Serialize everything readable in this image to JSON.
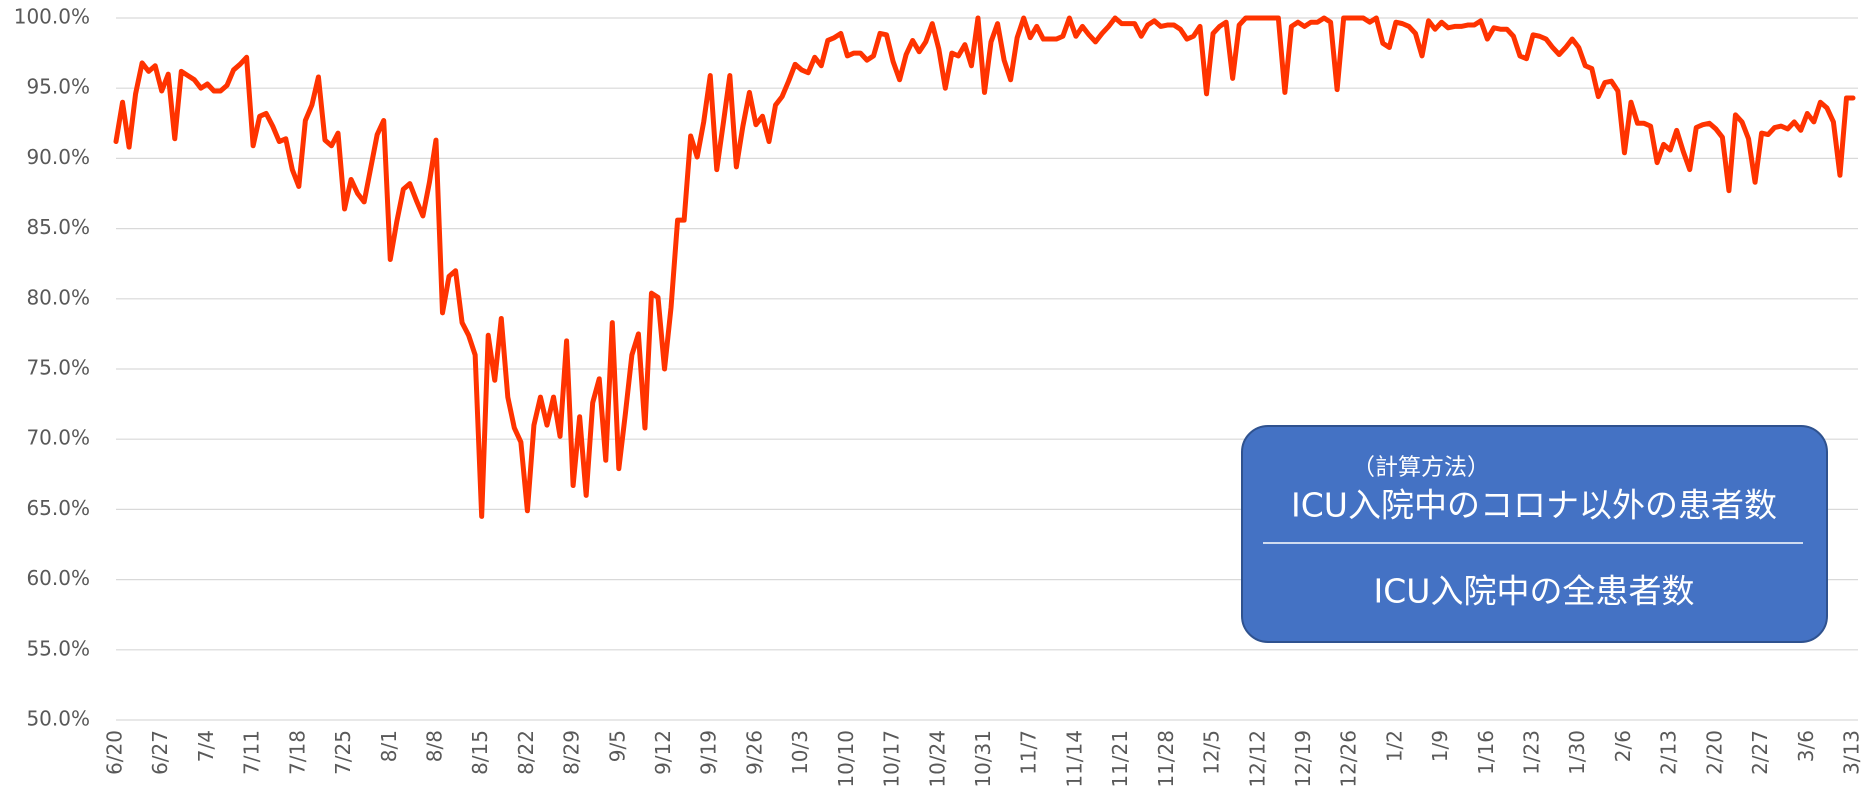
{
  "chart_data": {
    "type": "line",
    "categories": [
      "6/20",
      null,
      null,
      null,
      null,
      null,
      null,
      "6/27",
      null,
      null,
      null,
      null,
      null,
      null,
      "7/4",
      null,
      null,
      null,
      null,
      null,
      null,
      "7/11",
      null,
      null,
      null,
      null,
      null,
      null,
      "7/18",
      null,
      null,
      null,
      null,
      null,
      null,
      "7/25",
      null,
      null,
      null,
      null,
      null,
      null,
      "8/1",
      null,
      null,
      null,
      null,
      null,
      null,
      "8/8",
      null,
      null,
      null,
      null,
      null,
      null,
      "8/15",
      null,
      null,
      null,
      null,
      null,
      null,
      "8/22",
      null,
      null,
      null,
      null,
      null,
      null,
      "8/29",
      null,
      null,
      null,
      null,
      null,
      null,
      "9/5",
      null,
      null,
      null,
      null,
      null,
      null,
      "9/12",
      null,
      null,
      null,
      null,
      null,
      null,
      "9/19",
      null,
      null,
      null,
      null,
      null,
      null,
      "9/26",
      null,
      null,
      null,
      null,
      null,
      null,
      "10/3",
      null,
      null,
      null,
      null,
      null,
      null,
      "10/10",
      null,
      null,
      null,
      null,
      null,
      null,
      "10/17",
      null,
      null,
      null,
      null,
      null,
      null,
      "10/24",
      null,
      null,
      null,
      null,
      null,
      null,
      "10/31",
      null,
      null,
      null,
      null,
      null,
      null,
      "11/7",
      null,
      null,
      null,
      null,
      null,
      null,
      "11/14",
      null,
      null,
      null,
      null,
      null,
      null,
      "11/21",
      null,
      null,
      null,
      null,
      null,
      null,
      "11/28",
      null,
      null,
      null,
      null,
      null,
      null,
      "12/5",
      null,
      null,
      null,
      null,
      null,
      null,
      "12/12",
      null,
      null,
      null,
      null,
      null,
      null,
      "12/19",
      null,
      null,
      null,
      null,
      null,
      null,
      "12/26",
      null,
      null,
      null,
      null,
      null,
      null,
      "1/2",
      null,
      null,
      null,
      null,
      null,
      null,
      "1/9",
      null,
      null,
      null,
      null,
      null,
      null,
      "1/16",
      null,
      null,
      null,
      null,
      null,
      null,
      "1/23",
      null,
      null,
      null,
      null,
      null,
      null,
      "1/30",
      null,
      null,
      null,
      null,
      null,
      null,
      "2/6",
      null,
      null,
      null,
      null,
      null,
      null,
      "2/13",
      null,
      null,
      null,
      null,
      null,
      null,
      "2/20",
      null,
      null,
      null,
      null,
      null,
      null,
      "2/27",
      null,
      null,
      null,
      null,
      null,
      null,
      "3/6",
      null,
      null,
      null,
      null,
      null,
      null,
      "3/13"
    ],
    "series": [
      {
        "color": "#ff3300",
        "values": [
          91.2,
          94,
          90.8,
          94.6,
          96.8,
          96.2,
          96.6,
          94.8,
          96,
          91.4,
          96.2,
          95.9,
          95.6,
          95,
          95.3,
          94.8,
          94.8,
          95.2,
          96.3,
          96.7,
          97.2,
          90.9,
          93,
          93.2,
          92.3,
          91.2,
          91.4,
          89.2,
          88,
          92.7,
          93.8,
          95.8,
          91.3,
          90.9,
          91.8,
          86.4,
          88.5,
          87.5,
          86.9,
          89.3,
          91.7,
          92.7,
          82.8,
          85.5,
          87.8,
          88.2,
          87,
          85.9,
          88.3,
          91.3,
          79,
          81.6,
          82,
          78.3,
          77.4,
          76,
          64.5,
          77.4,
          74.2,
          78.6,
          73,
          70.8,
          69.8,
          64.9,
          71,
          73,
          71,
          73,
          70.2,
          77,
          66.7,
          71.6,
          66,
          72.6,
          74.3,
          68.5,
          78.3,
          67.9,
          71.8,
          76,
          77.5,
          70.8,
          80.4,
          80.1,
          75,
          79.4,
          85.6,
          85.6,
          91.6,
          90.1,
          92.6,
          95.9,
          89.2,
          92.5,
          95.9,
          89.4,
          92.3,
          94.7,
          92.4,
          93,
          91.2,
          93.8,
          94.4,
          95.5,
          96.7,
          96.3,
          96.1,
          97.2,
          96.6,
          98.4,
          98.6,
          98.9,
          97.3,
          97.5,
          97.5,
          97,
          97.3,
          98.9,
          98.8,
          96.9,
          95.6,
          97.4,
          98.4,
          97.6,
          98.3,
          99.6,
          97.8,
          95,
          97.5,
          97.3,
          98.1,
          96.6,
          100,
          94.7,
          98.3,
          99.6,
          97,
          95.6,
          98.6,
          100,
          98.6,
          99.4,
          98.5,
          98.5,
          98.5,
          98.7,
          100,
          98.7,
          99.4,
          98.8,
          98.3,
          98.9,
          99.4,
          100,
          99.6,
          99.6,
          99.6,
          98.7,
          99.5,
          99.8,
          99.4,
          99.5,
          99.5,
          99.2,
          98.5,
          98.7,
          99.4,
          94.6,
          98.9,
          99.4,
          99.7,
          95.7,
          99.5,
          100,
          100,
          100,
          100,
          100,
          100,
          94.7,
          99.4,
          99.7,
          99.4,
          99.7,
          99.7,
          100,
          99.7,
          94.9,
          100,
          100,
          100,
          100,
          99.7,
          100,
          98.2,
          97.9,
          99.7,
          99.6,
          99.4,
          98.9,
          97.3,
          99.8,
          99.2,
          99.7,
          99.3,
          99.4,
          99.4,
          99.5,
          99.5,
          99.8,
          98.5,
          99.3,
          99.2,
          99.2,
          98.7,
          97.3,
          97.1,
          98.8,
          98.7,
          98.5,
          97.9,
          97.4,
          97.9,
          98.5,
          97.9,
          96.6,
          96.4,
          94.4,
          95.4,
          95.5,
          94.8,
          90.4,
          94,
          92.5,
          92.5,
          92.3,
          89.7,
          91,
          90.6,
          92,
          90.5,
          89.2,
          92.2,
          92.4,
          92.5,
          92.1,
          91.5,
          87.7,
          93.1,
          92.6,
          91.4,
          88.3,
          91.8,
          91.7,
          92.2,
          92.3,
          92.1,
          92.6,
          92,
          93.2,
          92.6,
          94,
          93.6,
          92.6,
          88.8,
          94.3,
          94.3
        ]
      }
    ],
    "ylim": [
      50,
      100
    ],
    "yticks": [
      {
        "value": 50,
        "label": "50.0%"
      },
      {
        "value": 55,
        "label": "55.0%"
      },
      {
        "value": 60,
        "label": "60.0%"
      },
      {
        "value": 65,
        "label": "65.0%"
      },
      {
        "value": 70,
        "label": "70.0%"
      },
      {
        "value": 75,
        "label": "75.0%"
      },
      {
        "value": 80,
        "label": "80.0%"
      },
      {
        "value": 85,
        "label": "85.0%"
      },
      {
        "value": 90,
        "label": "90.0%"
      },
      {
        "value": 95,
        "label": "95.0%"
      },
      {
        "value": 100,
        "label": "100.0%"
      }
    ],
    "grid": true,
    "annotation": {
      "heading": "（計算方法）",
      "numerator": "ICU入院中のコロナ以外の患者数",
      "denominator": "ICU入院中の全患者数"
    }
  }
}
